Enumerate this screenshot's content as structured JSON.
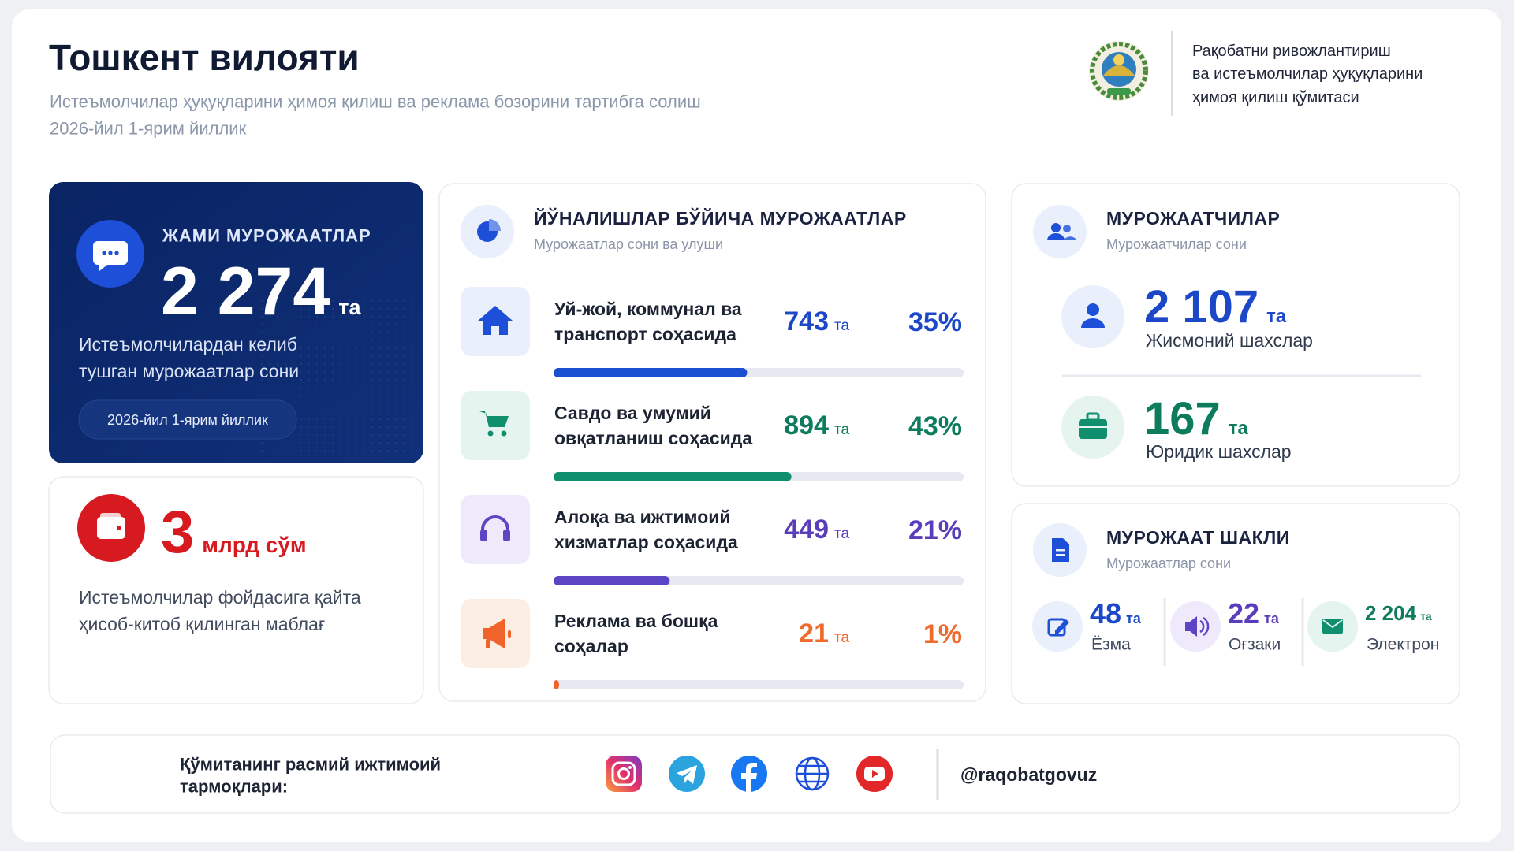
{
  "header": {
    "title": "Тошкент вилояти",
    "subtitle": "Истеъмолчилар ҳуқуқларини ҳимоя қилиш ва реклама бозорини тартибга солиш",
    "period": "2026-йил 1-ярим йиллик"
  },
  "organization": {
    "lines": [
      "Рақобатни ривожлантириш",
      "ва истеъмолчилар ҳуқуқларини",
      "ҳимоя қилиш қўмитаси"
    ]
  },
  "total": {
    "title": "ЖАМИ МУРОЖААТЛАР",
    "value": "2 274",
    "unit": "та",
    "description": [
      "Истеъмолчилардан келиб",
      "тушган мурожаатлар сони"
    ],
    "period": "2026-йил 1-ярим йиллик"
  },
  "refund": {
    "value": "3",
    "unit": "млрд сўм",
    "description": [
      "Истеъмолчилар фойдасига қайта",
      "ҳисоб-китоб қилинган маблағ"
    ]
  },
  "directions": {
    "title": "ЙЎНАЛИШЛАР БЎЙИЧА МУРОЖААТЛАР",
    "subtitle": "Мурожаатлар сони ва улуши",
    "items": [
      {
        "label": [
          "Уй-жой, коммунал ва",
          "транспорт соҳасида"
        ],
        "count": "743",
        "unit": "та",
        "share": {
          "value": 35,
          "label": "35%"
        }
      },
      {
        "label": [
          "Савдо ва умумий",
          "овқатланиш соҳасида"
        ],
        "count": "894",
        "unit": "та",
        "share": {
          "value": 43,
          "label": "43%"
        }
      },
      {
        "label": [
          "Алоқа ва ижтимоий",
          "хизматлар соҳасида"
        ],
        "count": "449",
        "unit": "та",
        "share": {
          "value": 21,
          "label": "21%"
        }
      },
      {
        "label": [
          "Реклама ва бошқа",
          "соҳалар"
        ],
        "count": "21",
        "unit": "та",
        "share": {
          "value": 1,
          "label": "1%"
        }
      }
    ]
  },
  "applicants": {
    "title": "МУРОЖААТЧИЛАР",
    "subtitle": "Мурожаатчилар сони",
    "items": [
      {
        "value": "2 107",
        "unit": "та",
        "label": "Жисмоний шахслар"
      },
      {
        "value": "167",
        "unit": "та",
        "label": "Юридик шахслар"
      }
    ]
  },
  "form": {
    "title": "МУРОЖААТ ШАКЛИ",
    "subtitle": "Мурожаатлар сони",
    "items": [
      {
        "value": "48",
        "unit": "та",
        "label": "Ёзма"
      },
      {
        "value": "22",
        "unit": "та",
        "label": "Оғзаки"
      },
      {
        "value": "2 204",
        "unit": "та",
        "label": "Электрон"
      }
    ]
  },
  "footer": {
    "label": [
      "Қўмитанинг расмий ижтимоий",
      "тармоқлари:"
    ],
    "handle": "@raqobatgovuz"
  }
}
